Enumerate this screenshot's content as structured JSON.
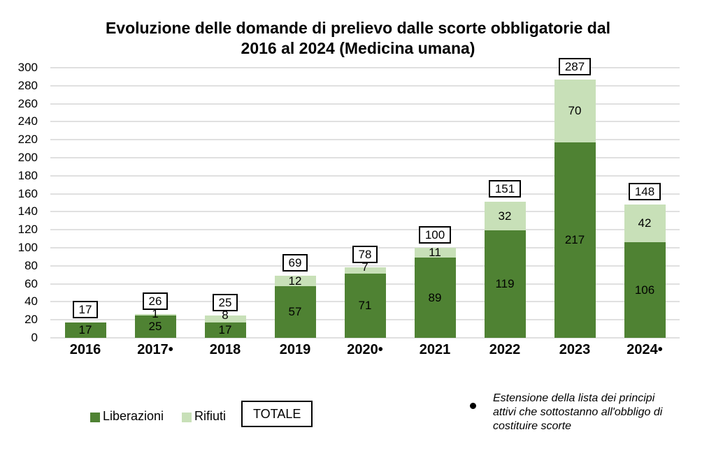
{
  "title": {
    "line1": "Evoluzione delle domande di prelievo dalle scorte obbligatorie dal",
    "line2": "2016 al 2024 (Medicina umana)"
  },
  "chart_data": {
    "type": "bar",
    "stacked": true,
    "title": "Evoluzione delle domande di prelievo dalle scorte obbligatorie dal 2016 al 2024 (Medicina umana)",
    "categories": [
      "2016",
      "2017•",
      "2018",
      "2019",
      "2020•",
      "2021",
      "2022",
      "2023",
      "2024•"
    ],
    "series": [
      {
        "name": "Liberazioni",
        "color": "#4f8233",
        "values": [
          17,
          25,
          17,
          57,
          71,
          89,
          119,
          217,
          106
        ]
      },
      {
        "name": "Rifiuti",
        "color": "#c8e0b8",
        "values": [
          0,
          1,
          8,
          12,
          7,
          11,
          32,
          70,
          42
        ]
      }
    ],
    "totals": {
      "label": "TOTALE",
      "boxed": true,
      "values": [
        17,
        26,
        25,
        69,
        78,
        100,
        151,
        287,
        148
      ]
    },
    "ylim": [
      0,
      300
    ],
    "y_tick_step": 20,
    "y_ticks": [
      0,
      20,
      40,
      60,
      80,
      100,
      120,
      140,
      160,
      180,
      200,
      220,
      240,
      260,
      280,
      300
    ],
    "grid": true,
    "legend_position": "bottom-left"
  },
  "legend": {
    "items": [
      {
        "label": "Liberazioni",
        "color": "#4f8233"
      },
      {
        "label": "Rifiuti",
        "color": "#c8e0b8"
      }
    ],
    "totale_label": "TOTALE"
  },
  "footnote": {
    "bullet": "•",
    "lines": [
      "Estensione della lista dei principi",
      "attivi che sottostanno all'obbligo di",
      "costituire scorte"
    ]
  },
  "colors": {
    "background": "#ffffff",
    "grid": "#e0e0e0",
    "text": "#000000",
    "box_border": "#000000"
  }
}
